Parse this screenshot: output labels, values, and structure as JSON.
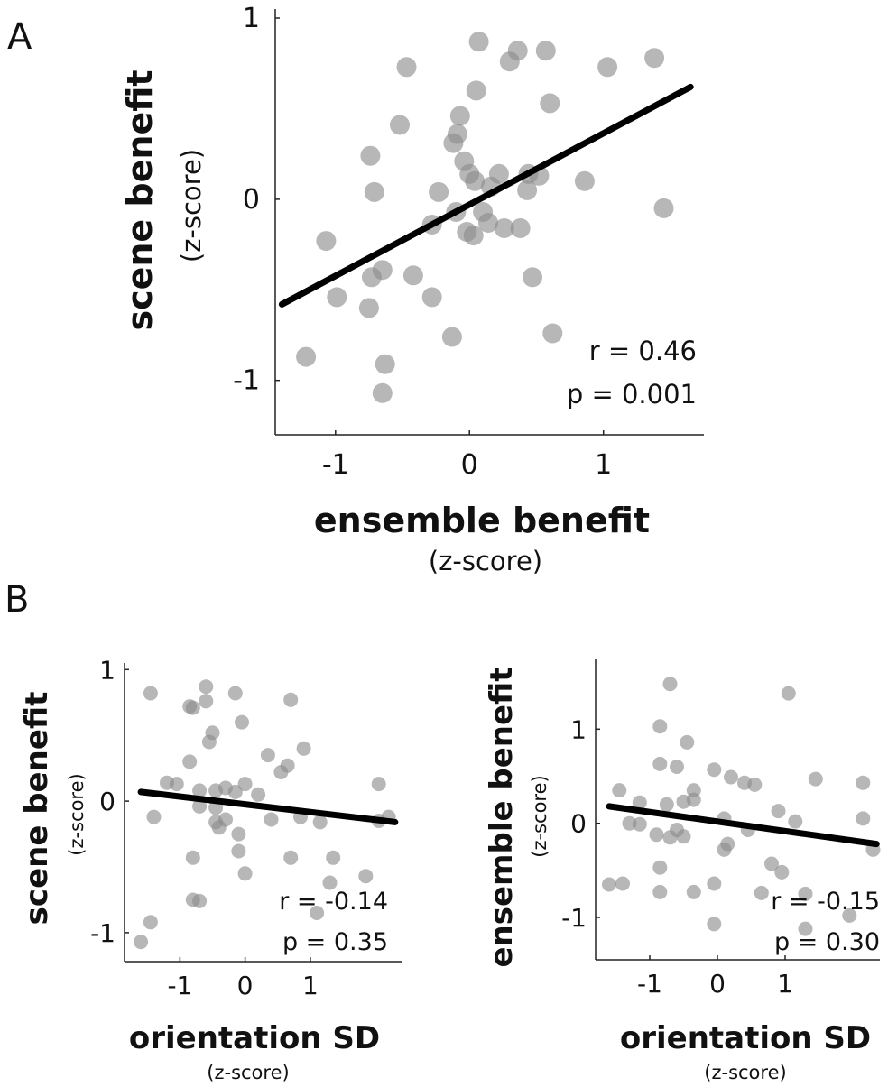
{
  "panels": {
    "a": {
      "letter": "A",
      "r_text": "r = 0.46",
      "p_text": "p = 0.001"
    },
    "b": {
      "letter": "B",
      "left": {
        "r_text": "r = -0.14",
        "p_text": "p = 0.35"
      },
      "right": {
        "r_text": "r = -0.15",
        "p_text": "p = 0.30"
      }
    }
  },
  "chart_data": [
    {
      "type": "scatter",
      "panel": "A",
      "xlabel": "ensemble benefit",
      "xlabel_sub": "(z-score)",
      "ylabel": "scene benefit",
      "ylabel_sub": "(z-score)",
      "xlim": [
        -1.45,
        1.75
      ],
      "ylim": [
        -1.3,
        1.05
      ],
      "xticks": [
        -1,
        0,
        1
      ],
      "xtick_labels": [
        "-1",
        "0",
        "1"
      ],
      "yticks": [
        -1,
        0,
        1
      ],
      "ytick_labels": [
        "-1",
        "0",
        "1"
      ],
      "grid": false,
      "fit_line": {
        "x": [
          -1.4,
          1.65
        ],
        "y": [
          -0.58,
          0.62
        ]
      },
      "stats": {
        "r": 0.46,
        "p": 0.001
      },
      "points": [
        [
          0.07,
          0.87
        ],
        [
          0.3,
          0.76
        ],
        [
          0.36,
          0.82
        ],
        [
          0.57,
          0.82
        ],
        [
          1.03,
          0.73
        ],
        [
          1.38,
          0.78
        ],
        [
          -0.47,
          0.73
        ],
        [
          0.05,
          0.6
        ],
        [
          0.6,
          0.53
        ],
        [
          -0.52,
          0.41
        ],
        [
          -0.07,
          0.46
        ],
        [
          -0.09,
          0.36
        ],
        [
          -0.12,
          0.31
        ],
        [
          -0.74,
          0.24
        ],
        [
          -0.04,
          0.21
        ],
        [
          0.0,
          0.14
        ],
        [
          0.22,
          0.14
        ],
        [
          0.44,
          0.14
        ],
        [
          0.52,
          0.13
        ],
        [
          0.86,
          0.1
        ],
        [
          0.04,
          0.1
        ],
        [
          -0.71,
          0.04
        ],
        [
          -0.23,
          0.04
        ],
        [
          0.16,
          0.07
        ],
        [
          0.43,
          0.05
        ],
        [
          1.45,
          -0.05
        ],
        [
          -0.1,
          -0.07
        ],
        [
          0.1,
          -0.07
        ],
        [
          0.14,
          -0.13
        ],
        [
          -0.28,
          -0.14
        ],
        [
          0.26,
          -0.16
        ],
        [
          0.38,
          -0.16
        ],
        [
          -0.02,
          -0.18
        ],
        [
          0.03,
          -0.2
        ],
        [
          -1.07,
          -0.23
        ],
        [
          -0.65,
          -0.39
        ],
        [
          -0.42,
          -0.42
        ],
        [
          -0.73,
          -0.43
        ],
        [
          0.47,
          -0.43
        ],
        [
          -0.99,
          -0.54
        ],
        [
          -0.28,
          -0.54
        ],
        [
          -0.75,
          -0.6
        ],
        [
          -0.13,
          -0.76
        ],
        [
          0.62,
          -0.74
        ],
        [
          -1.22,
          -0.87
        ],
        [
          -0.63,
          -0.91
        ],
        [
          -0.65,
          -1.07
        ]
      ]
    },
    {
      "type": "scatter",
      "panel": "B-left",
      "xlabel": "orientation SD",
      "xlabel_sub": "(z-score)",
      "ylabel": "scene benefit",
      "ylabel_sub": "(z-score)",
      "xlim": [
        -1.85,
        2.4
      ],
      "ylim": [
        -1.22,
        1.05
      ],
      "xticks": [
        -1,
        0,
        1
      ],
      "xtick_labels": [
        "-1",
        "0",
        "1"
      ],
      "yticks": [
        -1,
        0,
        1
      ],
      "ytick_labels": [
        "-1",
        "0",
        "1"
      ],
      "grid": false,
      "fit_line": {
        "x": [
          -1.6,
          2.3
        ],
        "y": [
          0.07,
          -0.16
        ]
      },
      "stats": {
        "r": -0.14,
        "p": 0.35
      },
      "points": [
        [
          -0.6,
          0.87
        ],
        [
          -1.45,
          0.82
        ],
        [
          -0.15,
          0.82
        ],
        [
          -0.6,
          0.76
        ],
        [
          0.7,
          0.77
        ],
        [
          -0.85,
          0.72
        ],
        [
          -0.8,
          0.71
        ],
        [
          -0.5,
          0.52
        ],
        [
          -0.05,
          0.6
        ],
        [
          -0.55,
          0.45
        ],
        [
          0.9,
          0.4
        ],
        [
          -0.85,
          0.3
        ],
        [
          0.35,
          0.35
        ],
        [
          0.65,
          0.27
        ],
        [
          0.55,
          0.22
        ],
        [
          -1.2,
          0.14
        ],
        [
          -1.05,
          0.13
        ],
        [
          0.0,
          0.13
        ],
        [
          2.05,
          0.13
        ],
        [
          -0.7,
          0.08
        ],
        [
          -0.45,
          0.08
        ],
        [
          -0.3,
          0.1
        ],
        [
          -0.15,
          0.07
        ],
        [
          0.2,
          0.05
        ],
        [
          -0.7,
          -0.04
        ],
        [
          -0.45,
          -0.05
        ],
        [
          -1.4,
          -0.12
        ],
        [
          -0.3,
          -0.14
        ],
        [
          -0.45,
          -0.16
        ],
        [
          0.4,
          -0.14
        ],
        [
          0.85,
          -0.12
        ],
        [
          1.15,
          -0.16
        ],
        [
          2.05,
          -0.15
        ],
        [
          2.2,
          -0.12
        ],
        [
          -0.4,
          -0.2
        ],
        [
          -0.1,
          -0.25
        ],
        [
          -0.1,
          -0.38
        ],
        [
          -0.8,
          -0.43
        ],
        [
          0.7,
          -0.43
        ],
        [
          1.35,
          -0.43
        ],
        [
          0.0,
          -0.55
        ],
        [
          1.85,
          -0.57
        ],
        [
          1.3,
          -0.62
        ],
        [
          -0.8,
          -0.75
        ],
        [
          -0.7,
          -0.76
        ],
        [
          1.1,
          -0.85
        ],
        [
          -1.45,
          -0.92
        ],
        [
          -1.6,
          -1.07
        ]
      ]
    },
    {
      "type": "scatter",
      "panel": "B-right",
      "xlabel": "orientation SD",
      "xlabel_sub": "(z-score)",
      "ylabel": "ensemble benefit",
      "ylabel_sub": "(z-score)",
      "xlim": [
        -1.8,
        2.4
      ],
      "ylim": [
        -1.45,
        1.75
      ],
      "xticks": [
        -1,
        0,
        1
      ],
      "xtick_labels": [
        "-1",
        "0",
        "1"
      ],
      "yticks": [
        -1,
        0,
        1
      ],
      "ytick_labels": [
        "-1",
        "0",
        "1"
      ],
      "grid": false,
      "fit_line": {
        "x": [
          -1.6,
          2.35
        ],
        "y": [
          0.18,
          -0.22
        ]
      },
      "stats": {
        "r": -0.15,
        "p": 0.3
      },
      "points": [
        [
          -0.7,
          1.48
        ],
        [
          1.05,
          1.38
        ],
        [
          -0.85,
          1.03
        ],
        [
          -0.45,
          0.86
        ],
        [
          -0.85,
          0.63
        ],
        [
          -0.6,
          0.6
        ],
        [
          -0.05,
          0.57
        ],
        [
          0.2,
          0.49
        ],
        [
          0.4,
          0.43
        ],
        [
          0.55,
          0.41
        ],
        [
          -1.45,
          0.35
        ],
        [
          -0.35,
          0.35
        ],
        [
          -0.75,
          0.2
        ],
        [
          -1.15,
          0.22
        ],
        [
          -0.5,
          0.23
        ],
        [
          -0.35,
          0.25
        ],
        [
          1.45,
          0.47
        ],
        [
          2.15,
          0.43
        ],
        [
          0.9,
          0.13
        ],
        [
          -1.3,
          0.0
        ],
        [
          -1.15,
          -0.01
        ],
        [
          0.1,
          0.05
        ],
        [
          1.15,
          0.02
        ],
        [
          2.15,
          0.05
        ],
        [
          -0.9,
          -0.12
        ],
        [
          -0.6,
          -0.07
        ],
        [
          -0.5,
          -0.14
        ],
        [
          0.45,
          -0.07
        ],
        [
          -0.7,
          -0.15
        ],
        [
          0.15,
          -0.22
        ],
        [
          0.1,
          -0.28
        ],
        [
          2.3,
          -0.28
        ],
        [
          -0.85,
          -0.47
        ],
        [
          0.8,
          -0.43
        ],
        [
          0.95,
          -0.52
        ],
        [
          -1.6,
          -0.65
        ],
        [
          -1.4,
          -0.64
        ],
        [
          -0.05,
          -0.64
        ],
        [
          -0.85,
          -0.73
        ],
        [
          -0.35,
          -0.73
        ],
        [
          0.65,
          -0.74
        ],
        [
          1.3,
          -0.75
        ],
        [
          1.95,
          -0.98
        ],
        [
          -0.05,
          -1.07
        ],
        [
          1.3,
          -1.12
        ]
      ]
    }
  ]
}
